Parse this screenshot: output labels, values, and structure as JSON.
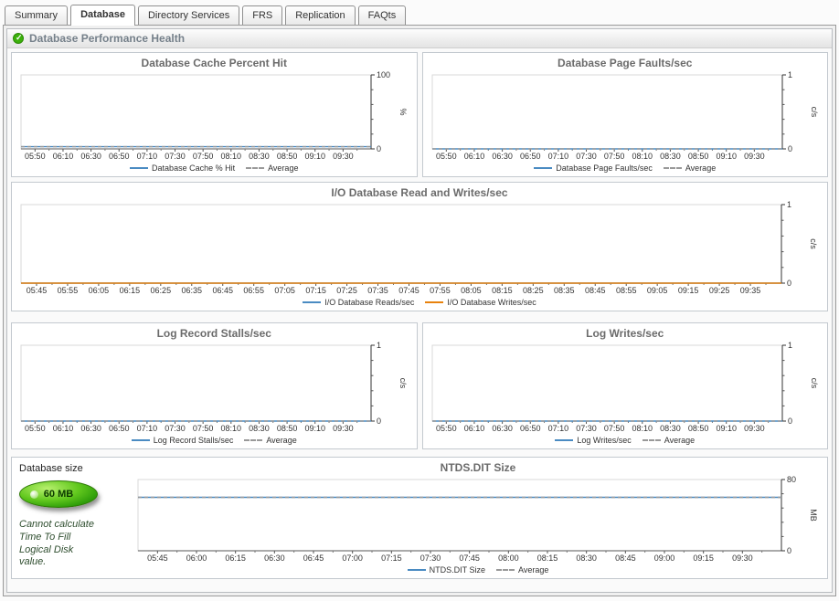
{
  "window": {
    "tabs": [
      {
        "label": "Summary",
        "active": false
      },
      {
        "label": "Database",
        "active": true
      },
      {
        "label": "Directory Services",
        "active": false
      },
      {
        "label": "FRS",
        "active": false
      },
      {
        "label": "Replication",
        "active": false
      },
      {
        "label": "FAQts",
        "active": false
      }
    ]
  },
  "section": {
    "title": "Database Performance Health"
  },
  "colors": {
    "series_blue": "#4a8bc2",
    "series_orange": "#e8820d",
    "average_dash": "#999999",
    "gauge_green": "#35a80b",
    "status_ok_green": "#3cb10b"
  },
  "side_panel": {
    "label": "Database size",
    "gauge_value": "60 MB",
    "note": "Cannot calculate\nTime To Fill\nLogical Disk\nvalue."
  },
  "chart_data": [
    {
      "type": "line",
      "title": "Database Cache Percent Hit",
      "categories": [
        "05:50",
        "06:10",
        "06:30",
        "06:50",
        "07:10",
        "07:30",
        "07:50",
        "08:10",
        "08:30",
        "08:50",
        "09:10",
        "09:30"
      ],
      "ylim": [
        0,
        100
      ],
      "yticks": [
        0,
        100
      ],
      "ylabel": "%",
      "legend_position": "bottom",
      "grid": false,
      "series": [
        {
          "name": "Database Cache % Hit",
          "color": "#4a8bc2",
          "style": "solid",
          "values": [
            3,
            3,
            3,
            3,
            3,
            3,
            3,
            3,
            3,
            3,
            3,
            3
          ]
        },
        {
          "name": "Average",
          "color": "#999999",
          "style": "dashed",
          "values": [
            3,
            3,
            3,
            3,
            3,
            3,
            3,
            3,
            3,
            3,
            3,
            3
          ]
        }
      ]
    },
    {
      "type": "line",
      "title": "Database Page Faults/sec",
      "categories": [
        "05:50",
        "06:10",
        "06:30",
        "06:50",
        "07:10",
        "07:30",
        "07:50",
        "08:10",
        "08:30",
        "08:50",
        "09:10",
        "09:30"
      ],
      "ylim": [
        0,
        1
      ],
      "yticks": [
        0,
        1
      ],
      "ylabel": "c/s",
      "legend_position": "bottom",
      "grid": false,
      "series": [
        {
          "name": "Database Page Faults/sec",
          "color": "#4a8bc2",
          "style": "solid",
          "values": [
            0,
            0,
            0,
            0,
            0,
            0,
            0,
            0,
            0,
            0,
            0,
            0
          ]
        },
        {
          "name": "Average",
          "color": "#999999",
          "style": "dashed",
          "values": [
            0,
            0,
            0,
            0,
            0,
            0,
            0,
            0,
            0,
            0,
            0,
            0
          ]
        }
      ]
    },
    {
      "type": "line",
      "title": "I/O Database Read and Writes/sec",
      "categories": [
        "05:45",
        "05:55",
        "06:05",
        "06:15",
        "06:25",
        "06:35",
        "06:45",
        "06:55",
        "07:05",
        "07:15",
        "07:25",
        "07:35",
        "07:45",
        "07:55",
        "08:05",
        "08:15",
        "08:25",
        "08:35",
        "08:45",
        "08:55",
        "09:05",
        "09:15",
        "09:25",
        "09:35"
      ],
      "ylim": [
        0,
        1
      ],
      "yticks": [
        0,
        1
      ],
      "ylabel": "c/s",
      "legend_position": "bottom",
      "grid": false,
      "series": [
        {
          "name": "I/O Database Reads/sec",
          "color": "#4a8bc2",
          "style": "solid",
          "values": [
            0,
            0,
            0,
            0,
            0,
            0,
            0,
            0,
            0,
            0,
            0,
            0,
            0,
            0,
            0,
            0,
            0,
            0,
            0,
            0,
            0,
            0,
            0,
            0
          ]
        },
        {
          "name": "I/O Database Writes/sec",
          "color": "#e8820d",
          "style": "solid",
          "values": [
            0,
            0,
            0,
            0,
            0,
            0,
            0,
            0,
            0,
            0,
            0,
            0,
            0,
            0,
            0,
            0,
            0,
            0,
            0,
            0,
            0,
            0,
            0,
            0
          ]
        }
      ]
    },
    {
      "type": "line",
      "title": "Log Record Stalls/sec",
      "categories": [
        "05:50",
        "06:10",
        "06:30",
        "06:50",
        "07:10",
        "07:30",
        "07:50",
        "08:10",
        "08:30",
        "08:50",
        "09:10",
        "09:30"
      ],
      "ylim": [
        0,
        1
      ],
      "yticks": [
        0,
        1
      ],
      "ylabel": "c/s",
      "legend_position": "bottom",
      "grid": false,
      "series": [
        {
          "name": "Log Record Stalls/sec",
          "color": "#4a8bc2",
          "style": "solid",
          "values": [
            0,
            0,
            0,
            0,
            0,
            0,
            0,
            0,
            0,
            0,
            0,
            0
          ]
        },
        {
          "name": "Average",
          "color": "#999999",
          "style": "dashed",
          "values": [
            0,
            0,
            0,
            0,
            0,
            0,
            0,
            0,
            0,
            0,
            0,
            0
          ]
        }
      ]
    },
    {
      "type": "line",
      "title": "Log Writes/sec",
      "categories": [
        "05:50",
        "06:10",
        "06:30",
        "06:50",
        "07:10",
        "07:30",
        "07:50",
        "08:10",
        "08:30",
        "08:50",
        "09:10",
        "09:30"
      ],
      "ylim": [
        0,
        1
      ],
      "yticks": [
        0,
        1
      ],
      "ylabel": "c/s",
      "legend_position": "bottom",
      "grid": false,
      "series": [
        {
          "name": "Log Writes/sec",
          "color": "#4a8bc2",
          "style": "solid",
          "values": [
            0,
            0,
            0,
            0,
            0,
            0,
            0,
            0,
            0,
            0,
            0,
            0
          ]
        },
        {
          "name": "Average",
          "color": "#999999",
          "style": "dashed",
          "values": [
            0,
            0,
            0,
            0,
            0,
            0,
            0,
            0,
            0,
            0,
            0,
            0
          ]
        }
      ]
    },
    {
      "type": "line",
      "title": "NTDS.DIT Size",
      "categories": [
        "05:45",
        "06:00",
        "06:15",
        "06:30",
        "06:45",
        "07:00",
        "07:15",
        "07:30",
        "07:45",
        "08:00",
        "08:15",
        "08:30",
        "08:45",
        "09:00",
        "09:15",
        "09:30"
      ],
      "ylim": [
        0,
        80
      ],
      "yticks": [
        0,
        80
      ],
      "ylabel": "MB",
      "legend_position": "bottom",
      "grid": false,
      "series": [
        {
          "name": "NTDS.DIT Size",
          "color": "#4a8bc2",
          "style": "solid",
          "values": [
            60,
            60,
            60,
            60,
            60,
            60,
            60,
            60,
            60,
            60,
            60,
            60,
            60,
            60,
            60,
            60
          ]
        },
        {
          "name": "Average",
          "color": "#999999",
          "style": "dashed",
          "values": [
            60,
            60,
            60,
            60,
            60,
            60,
            60,
            60,
            60,
            60,
            60,
            60,
            60,
            60,
            60,
            60
          ]
        }
      ]
    }
  ]
}
